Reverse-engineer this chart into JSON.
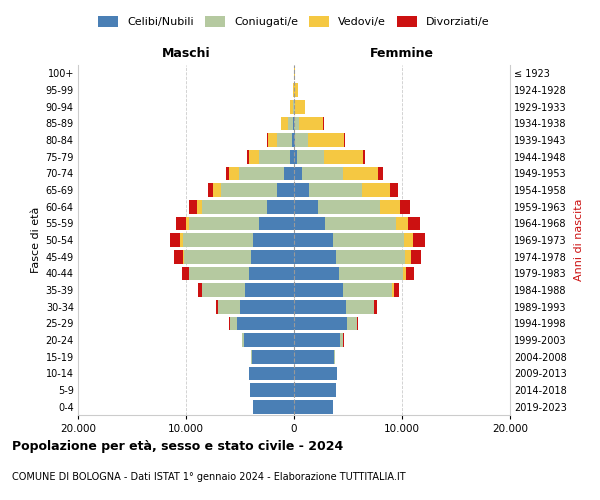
{
  "age_groups": [
    "0-4",
    "5-9",
    "10-14",
    "15-19",
    "20-24",
    "25-29",
    "30-34",
    "35-39",
    "40-44",
    "45-49",
    "50-54",
    "55-59",
    "60-64",
    "65-69",
    "70-74",
    "75-79",
    "80-84",
    "85-89",
    "90-94",
    "95-99",
    "100+"
  ],
  "birth_years": [
    "2019-2023",
    "2014-2018",
    "2009-2013",
    "2004-2008",
    "1999-2003",
    "1994-1998",
    "1989-1993",
    "1984-1988",
    "1979-1983",
    "1974-1978",
    "1969-1973",
    "1964-1968",
    "1959-1963",
    "1954-1958",
    "1949-1953",
    "1944-1948",
    "1939-1943",
    "1934-1938",
    "1929-1933",
    "1924-1928",
    "≤ 1923"
  ],
  "colors": {
    "celibi": "#4a7fb5",
    "coniugati": "#b5c9a0",
    "vedovi": "#f5c842",
    "divorziati": "#cc1111"
  },
  "males": {
    "celibi": [
      3800,
      4100,
      4200,
      3900,
      4600,
      5300,
      5000,
      4500,
      4200,
      4000,
      3800,
      3200,
      2500,
      1600,
      900,
      400,
      150,
      60,
      15,
      4,
      1
    ],
    "coniugati": [
      5,
      10,
      10,
      50,
      200,
      600,
      2000,
      4000,
      5500,
      6200,
      6500,
      6500,
      6000,
      5200,
      4200,
      2800,
      1400,
      500,
      120,
      25,
      3
    ],
    "vedovi": [
      1,
      1,
      1,
      2,
      3,
      8,
      15,
      30,
      60,
      120,
      220,
      320,
      480,
      680,
      900,
      1000,
      900,
      620,
      260,
      90,
      20
    ],
    "divorziati": [
      1,
      1,
      1,
      4,
      25,
      80,
      200,
      380,
      600,
      800,
      950,
      900,
      700,
      480,
      280,
      140,
      55,
      18,
      4,
      1,
      0
    ]
  },
  "females": {
    "celibi": [
      3600,
      3900,
      4000,
      3700,
      4300,
      4900,
      4800,
      4500,
      4200,
      3900,
      3600,
      2900,
      2200,
      1400,
      700,
      280,
      100,
      30,
      8,
      2,
      0
    ],
    "coniugati": [
      5,
      10,
      10,
      50,
      250,
      900,
      2600,
      4600,
      5900,
      6400,
      6600,
      6500,
      5800,
      4900,
      3800,
      2500,
      1200,
      400,
      90,
      18,
      2
    ],
    "vedovi": [
      1,
      1,
      1,
      3,
      8,
      18,
      45,
      120,
      260,
      500,
      800,
      1200,
      1800,
      2600,
      3300,
      3600,
      3300,
      2300,
      950,
      340,
      90
    ],
    "divorziati": [
      1,
      1,
      1,
      4,
      30,
      100,
      280,
      520,
      780,
      1000,
      1150,
      1100,
      950,
      700,
      420,
      230,
      80,
      25,
      5,
      2,
      0
    ]
  },
  "xlim": 20000,
  "xticks": [
    -20000,
    -10000,
    0,
    10000,
    20000
  ],
  "xtick_labels": [
    "20.000",
    "10.000",
    "0",
    "10.000",
    "20.000"
  ],
  "title": "Popolazione per età, sesso e stato civile - 2024",
  "subtitle": "COMUNE DI BOLOGNA - Dati ISTAT 1° gennaio 2024 - Elaborazione TUTTITALIA.IT",
  "ylabel_left": "Fasce di età",
  "ylabel_right": "Anni di nascita"
}
